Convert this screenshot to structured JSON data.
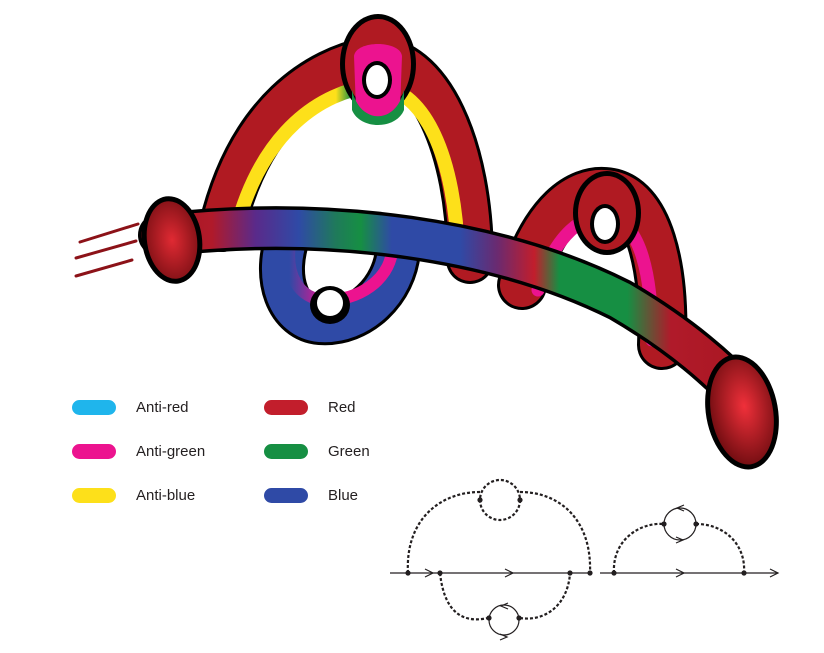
{
  "legend": {
    "anti_colors": [
      {
        "label": "Anti-red",
        "color": "#1fb5ec"
      },
      {
        "label": "Anti-green",
        "color": "#ec138f"
      },
      {
        "label": "Anti-blue",
        "color": "#fde01a"
      }
    ],
    "colors": [
      {
        "label": "Red",
        "color": "#c21e2c"
      },
      {
        "label": "Green",
        "color": "#168f43"
      },
      {
        "label": "Blue",
        "color": "#2f4aa6"
      }
    ]
  },
  "palette": {
    "red": "#c21e2c",
    "dark_red": "#8c1218",
    "green": "#168f43",
    "blue": "#2f4aa6",
    "magenta": "#ec138f",
    "yellow": "#fde01a",
    "outline": "#000000",
    "diagram_line": "#231f20"
  }
}
